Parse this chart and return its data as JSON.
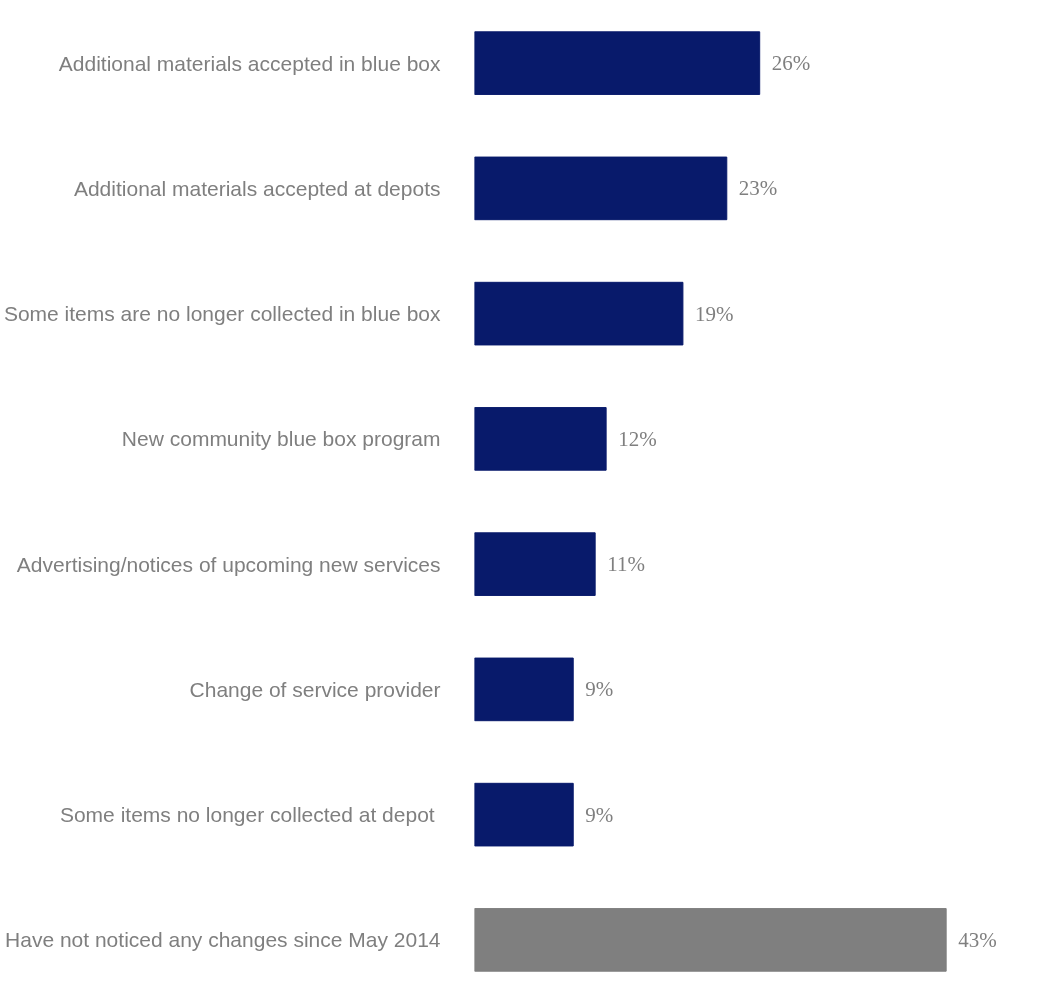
{
  "chart_data": {
    "type": "bar",
    "orientation": "horizontal",
    "grid": false,
    "categories": [
      "Additional materials accepted in blue box",
      "Additional materials accepted at depots",
      "Some items are no longer collected in blue box",
      "New community blue box program",
      "Advertising/notices of upcoming new services",
      "Change of service provider",
      "Some items  no longer collected at depot",
      "Have not noticed any changes since May 2014"
    ],
    "values": [
      26,
      23,
      19,
      12,
      11,
      9,
      9,
      43
    ],
    "value_labels": [
      "26%",
      "23%",
      "19%",
      "12%",
      "11%",
      "9%",
      "9%",
      "43%"
    ],
    "colors": [
      "#081a6b",
      "#081a6b",
      "#081a6b",
      "#081a6b",
      "#081a6b",
      "#081a6b",
      "#081a6b",
      "#7f7f7f"
    ]
  }
}
